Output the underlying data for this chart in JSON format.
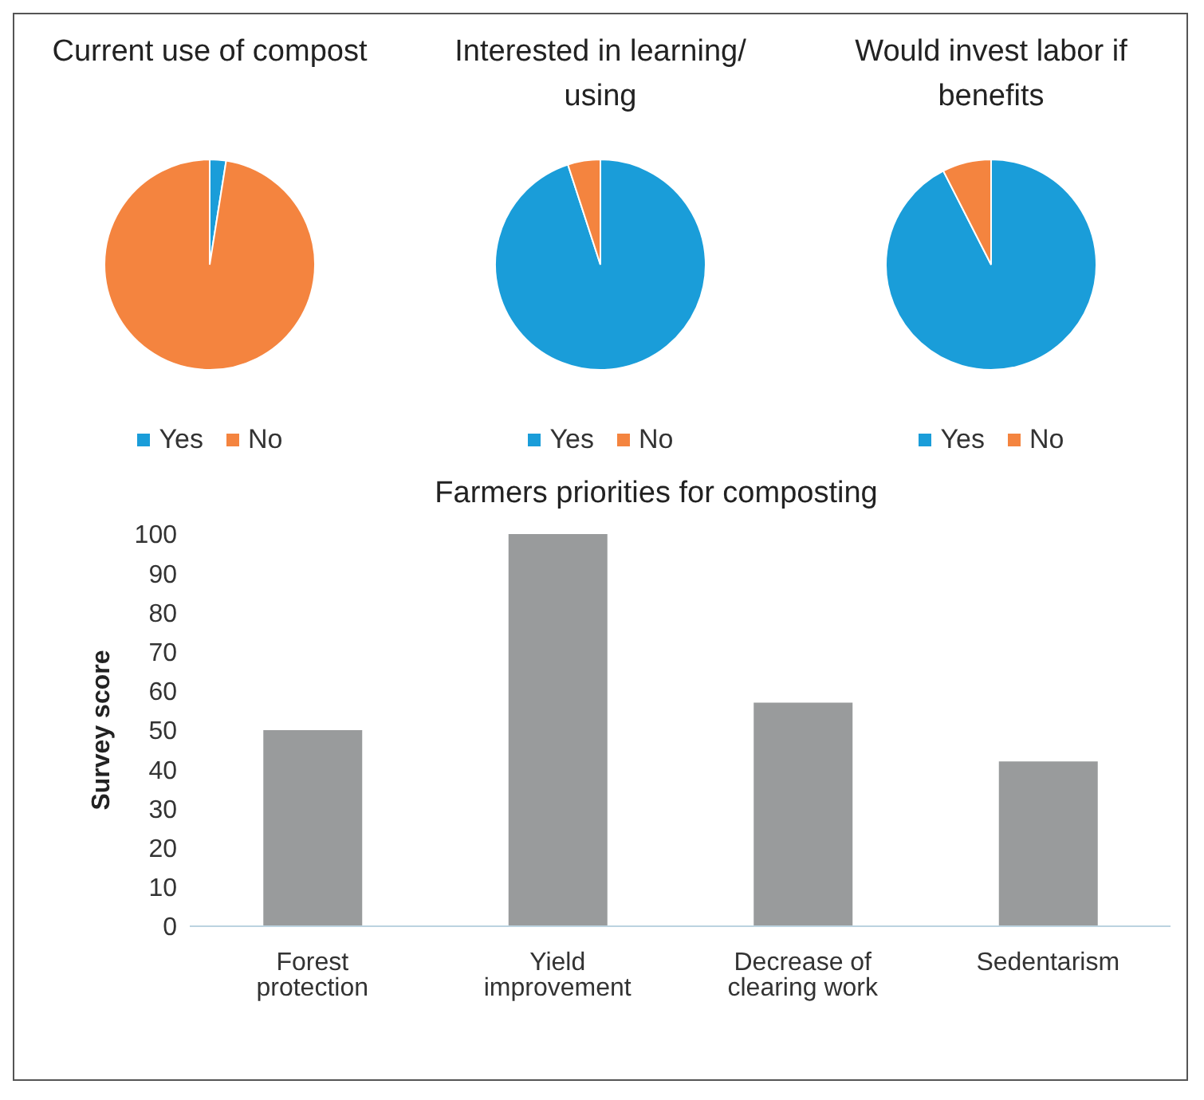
{
  "chart_data": [
    {
      "type": "pie",
      "title": "Current use of compost",
      "categories": [
        "Yes",
        "No"
      ],
      "values": [
        2.5,
        97.5
      ],
      "colors": [
        "#1a9dd9",
        "#f4843f"
      ],
      "legend": "bottom"
    },
    {
      "type": "pie",
      "title": "Interested in learning/ using",
      "categories": [
        "Yes",
        "No"
      ],
      "values": [
        95,
        5
      ],
      "colors": [
        "#1a9dd9",
        "#f4843f"
      ],
      "legend": "bottom"
    },
    {
      "type": "pie",
      "title": "Would invest labor if benefits",
      "categories": [
        "Yes",
        "No"
      ],
      "values": [
        92.5,
        7.5
      ],
      "colors": [
        "#1a9dd9",
        "#f4843f"
      ],
      "legend": "bottom"
    },
    {
      "type": "bar",
      "title": "Farmers priorities for composting",
      "ylabel": "Survey score",
      "categories": [
        "Forest protection",
        "Yield improvement",
        "Decrease of clearing work",
        "Sedentarism"
      ],
      "values": [
        50,
        100,
        57,
        42
      ],
      "color": "#999b9c",
      "ylim": [
        0,
        100
      ],
      "yticks": [
        0,
        10,
        20,
        30,
        40,
        50,
        60,
        70,
        80,
        90,
        100
      ],
      "grid": false,
      "legend": false
    }
  ]
}
